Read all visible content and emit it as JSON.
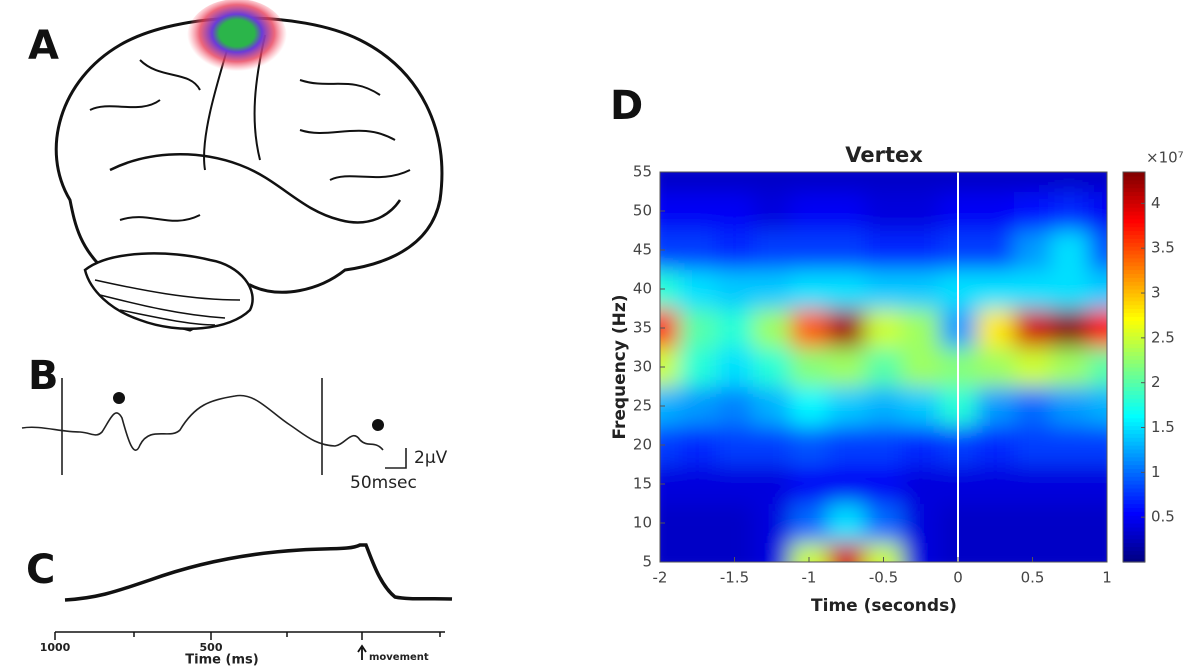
{
  "panels": {
    "a": "A",
    "b": "B",
    "c": "C"
  },
  "panel_b": {
    "amplitude_scale": "2µV",
    "time_scale": "50msec"
  },
  "panel_c": {
    "tick_left": "1000",
    "tick_mid": "500",
    "xlabel": "Time (ms)",
    "event": "movement"
  },
  "chart_data": {
    "type": "heatmap",
    "panel": "D",
    "title": "Vertex",
    "xlabel": "Time (seconds)",
    "ylabel": "Frequency (Hz)",
    "x": [
      -2,
      -1.75,
      -1.5,
      -1.25,
      -1,
      -0.75,
      -0.5,
      -0.25,
      0,
      0.25,
      0.5,
      0.75,
      1
    ],
    "y": [
      5,
      10,
      15,
      20,
      25,
      30,
      35,
      40,
      45,
      50,
      55
    ],
    "z": [
      [
        0.3,
        0.3,
        0.3,
        0.4,
        2.5,
        4.0,
        2.5,
        0.4,
        0.3,
        0.3,
        0.3,
        0.3,
        0.3
      ],
      [
        0.3,
        0.3,
        0.3,
        0.4,
        1.0,
        1.5,
        1.0,
        0.4,
        0.3,
        0.3,
        0.3,
        0.3,
        0.3
      ],
      [
        0.4,
        0.4,
        0.4,
        0.4,
        0.5,
        0.5,
        0.5,
        0.4,
        0.4,
        0.4,
        0.4,
        0.4,
        0.4
      ],
      [
        0.8,
        0.7,
        0.8,
        0.8,
        0.9,
        0.8,
        0.8,
        0.7,
        0.8,
        0.7,
        0.8,
        0.8,
        0.8
      ],
      [
        1.3,
        1.2,
        1.1,
        1.3,
        1.6,
        1.4,
        1.3,
        1.4,
        1.8,
        1.2,
        1.0,
        1.2,
        1.3
      ],
      [
        2.5,
        1.8,
        1.5,
        1.8,
        2.2,
        2.3,
        2.0,
        2.3,
        2.2,
        2.3,
        2.5,
        2.3,
        2.0
      ],
      [
        3.8,
        2.0,
        1.8,
        2.3,
        3.4,
        4.2,
        2.5,
        2.3,
        1.2,
        2.8,
        4.0,
        4.3,
        3.8
      ],
      [
        1.8,
        1.5,
        1.4,
        1.4,
        1.5,
        1.5,
        1.4,
        1.4,
        1.5,
        1.5,
        1.5,
        1.5,
        1.4
      ],
      [
        0.8,
        0.8,
        0.7,
        0.8,
        0.8,
        0.8,
        0.7,
        0.7,
        0.8,
        0.8,
        1.2,
        1.5,
        0.9
      ],
      [
        0.5,
        0.5,
        0.5,
        0.4,
        0.5,
        0.5,
        0.4,
        0.4,
        0.5,
        0.5,
        0.6,
        0.7,
        0.5
      ],
      [
        0.3,
        0.3,
        0.3,
        0.3,
        0.3,
        0.3,
        0.3,
        0.3,
        0.3,
        0.3,
        0.3,
        0.3,
        0.3
      ]
    ],
    "xlim": [
      -2,
      1
    ],
    "ylim": [
      5,
      55
    ],
    "xticks": [
      -2,
      -1.5,
      -1,
      -0.5,
      0,
      0.5,
      1
    ],
    "yticks": [
      5,
      10,
      15,
      20,
      25,
      30,
      35,
      40,
      45,
      50,
      55
    ],
    "clim": [
      0,
      4.35
    ],
    "cticks": [
      0.5,
      1,
      1.5,
      2,
      2.5,
      3,
      3.5,
      4
    ],
    "cscale_label": "×10⁷",
    "colormap": "jet",
    "vline": 0
  }
}
